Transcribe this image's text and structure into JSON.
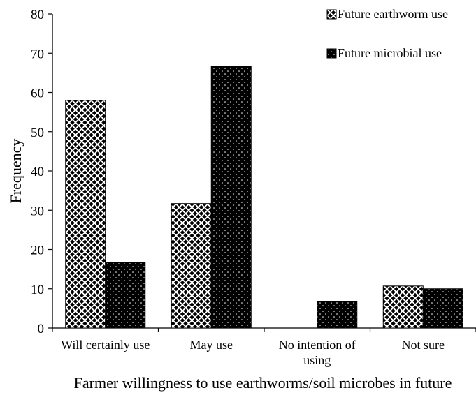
{
  "chart_data": {
    "type": "bar",
    "xlabel": "Farmer willingness  to use earthworms/soil microbes in future",
    "ylabel": "Frequency",
    "ylim": [
      0,
      80
    ],
    "yticks": [
      0,
      10,
      20,
      30,
      40,
      50,
      60,
      70,
      80
    ],
    "categories": [
      [
        "Will certainly use"
      ],
      [
        "May use"
      ],
      [
        "No intention of",
        "using"
      ],
      [
        "Not sure"
      ]
    ],
    "series": [
      {
        "name": "Future earthworm use",
        "values": [
          58,
          31.7,
          0,
          10.7
        ],
        "pattern": "checker-diamond",
        "color": "#000000"
      },
      {
        "name": "Future microbial use",
        "values": [
          16.7,
          66.7,
          6.7,
          10
        ],
        "pattern": "dotted-black",
        "color": "#000000"
      }
    ],
    "legend_position": "top-right",
    "grid": false
  }
}
